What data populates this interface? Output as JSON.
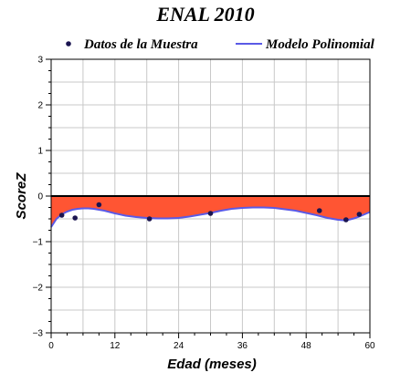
{
  "chart_data": {
    "type": "scatter",
    "title": "ENAL 2010",
    "xlabel": "Edad (meses)",
    "ylabel": "ScoreZ",
    "xlim": [
      0,
      60
    ],
    "ylim": [
      -3,
      3
    ],
    "x_ticks": [
      0,
      12,
      24,
      36,
      48,
      60
    ],
    "y_ticks": [
      -3,
      -2,
      -1,
      0,
      1,
      2,
      3
    ],
    "grid": true,
    "legend_position": "top",
    "legend": [
      "Datos de la Muestra",
      "Modelo Polinomial"
    ],
    "series": [
      {
        "name": "Datos de la Muestra",
        "kind": "scatter",
        "color": "#1a1450",
        "x": [
          2,
          4.5,
          9,
          18.5,
          30,
          50.5,
          55.5,
          58
        ],
        "y": [
          -0.42,
          -0.48,
          -0.19,
          -0.5,
          -0.38,
          -0.32,
          -0.52,
          -0.4
        ]
      },
      {
        "name": "Modelo Polinomial",
        "kind": "line",
        "color": "#5a5ae6",
        "x": [
          0,
          1,
          2,
          3,
          4,
          5,
          6,
          7,
          8,
          9,
          10,
          12,
          14,
          16,
          18,
          20,
          22,
          24,
          26,
          28,
          30,
          32,
          34,
          36,
          38,
          40,
          42,
          44,
          46,
          48,
          50,
          52,
          54,
          55,
          56,
          57,
          58,
          59,
          60
        ],
        "y": [
          -0.68,
          -0.5,
          -0.4,
          -0.34,
          -0.3,
          -0.28,
          -0.27,
          -0.27,
          -0.28,
          -0.3,
          -0.32,
          -0.38,
          -0.43,
          -0.46,
          -0.48,
          -0.49,
          -0.49,
          -0.48,
          -0.45,
          -0.41,
          -0.37,
          -0.32,
          -0.28,
          -0.26,
          -0.25,
          -0.25,
          -0.26,
          -0.29,
          -0.32,
          -0.37,
          -0.42,
          -0.48,
          -0.52,
          -0.53,
          -0.52,
          -0.49,
          -0.45,
          -0.4,
          -0.35
        ]
      }
    ],
    "fill": {
      "between": "Modelo Polinomial",
      "and_y": 0,
      "color": "#ff5533"
    },
    "colors": {
      "zero_line": "#000000",
      "grid": "#c8c8c8",
      "frame": "#000000"
    }
  }
}
